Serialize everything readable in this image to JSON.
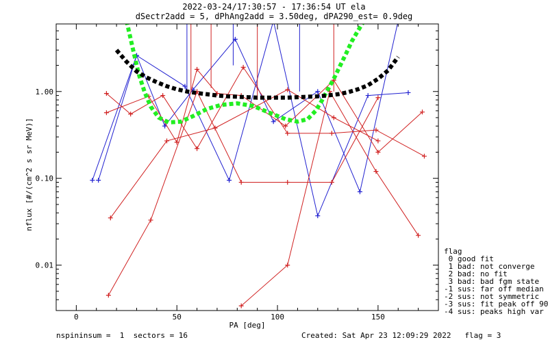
{
  "chart_data": {
    "type": "line",
    "title": "2022-03-24/17:30:57 - 17:36:54 UT ela",
    "subtitle": "dSectr2add = 5, dPhAng2add = 3.50deg, dPA290_est=    0.9deg",
    "xlabel": "PA [deg]",
    "ylabel": "nflux [#/(cm^2 s sr MeV)]",
    "xlim": [
      -10,
      180
    ],
    "ylim": [
      0.003,
      6.0
    ],
    "yscale": "log",
    "x_ticks": [
      0,
      50,
      100,
      150
    ],
    "y_ticks": [
      {
        "value": 0.01,
        "label": "0.01"
      },
      {
        "value": 0.1,
        "label": "0.10"
      },
      {
        "value": 1.0,
        "label": "1.00"
      }
    ],
    "series": [
      {
        "color": "#2020d0",
        "style": "line-plus",
        "x": [
          11,
          30,
          54,
          76,
          98,
          120,
          145,
          165
        ],
        "y": [
          0.095,
          2.6,
          1.15,
          0.095,
          6.5,
          0.037,
          0.9,
          0.97
        ]
      },
      {
        "color": "#2020d0",
        "style": "line-plus",
        "x": [
          8,
          30,
          44,
          58,
          79,
          98,
          120,
          141,
          160
        ],
        "y": [
          0.095,
          2.6,
          0.4,
          1.05,
          4.0,
          0.45,
          1.0,
          0.07,
          6.5
        ]
      },
      {
        "color": "#2020d0",
        "style": "segments",
        "x": [
          55,
          55,
          78,
          78,
          111,
          111
        ],
        "y": [
          6.5,
          1.0,
          6.5,
          2.0,
          6.5,
          1.0
        ]
      },
      {
        "color": "#d02020",
        "style": "line-plus",
        "x": [
          15,
          36,
          50,
          60,
          70,
          82,
          104,
          128,
          150,
          172
        ],
        "y": [
          0.57,
          0.88,
          0.26,
          1.8,
          0.95,
          0.9,
          0.4,
          1.35,
          0.2,
          0.58
        ]
      },
      {
        "color": "#d02020",
        "style": "line-plus",
        "x": [
          15,
          27,
          43,
          60,
          83,
          105,
          127,
          149,
          173
        ],
        "y": [
          0.95,
          0.55,
          0.9,
          0.22,
          1.9,
          0.33,
          0.33,
          0.36,
          0.18
        ]
      },
      {
        "color": "#d02020",
        "style": "line-plus",
        "x": [
          16,
          37,
          60,
          82,
          105,
          127,
          150
        ],
        "y": [
          0.0045,
          0.033,
          1.0,
          0.09,
          0.09,
          0.09,
          0.85
        ]
      },
      {
        "color": "#d02020",
        "style": "line-plus",
        "x": [
          82,
          105,
          126,
          149,
          170
        ],
        "y": [
          0.0034,
          0.01,
          1.0,
          0.12,
          0.022
        ]
      },
      {
        "color": "#d02020",
        "style": "line-plus",
        "x": [
          17,
          45,
          69,
          105,
          128,
          150
        ],
        "y": [
          0.035,
          0.27,
          0.38,
          1.05,
          0.5,
          0.27
        ]
      },
      {
        "color": "#d02020",
        "style": "segments",
        "x": [
          57,
          57,
          67,
          67,
          90,
          90,
          128,
          128
        ],
        "y": [
          6.5,
          1.0,
          6.5,
          1.1,
          6.5,
          0.8,
          6.5,
          1.0
        ]
      },
      {
        "color": "#22ee22",
        "style": "thick-dotted",
        "x": [
          25,
          28,
          31,
          34,
          37,
          41,
          46,
          52,
          58,
          65,
          72,
          80,
          88,
          96,
          104,
          110,
          115,
          119,
          122,
          125,
          128,
          131,
          134,
          137,
          140,
          143,
          146
        ],
        "y": [
          6.5,
          3.2,
          1.6,
          0.98,
          0.67,
          0.5,
          0.44,
          0.45,
          0.52,
          0.63,
          0.7,
          0.73,
          0.68,
          0.57,
          0.48,
          0.45,
          0.48,
          0.6,
          0.78,
          1.05,
          1.4,
          1.95,
          2.7,
          3.8,
          5.0,
          6.5,
          7.0
        ]
      },
      {
        "color": "#000000",
        "style": "thick-dotted",
        "x": [
          20,
          25,
          30,
          35,
          40,
          45,
          50,
          55,
          60,
          65,
          70,
          75,
          80,
          85,
          90,
          95,
          100,
          105,
          110,
          115,
          120,
          125,
          130,
          135,
          140,
          145,
          150,
          155,
          160
        ],
        "y": [
          3.0,
          2.2,
          1.7,
          1.45,
          1.28,
          1.15,
          1.06,
          1.0,
          0.96,
          0.93,
          0.9,
          0.88,
          0.87,
          0.86,
          0.85,
          0.85,
          0.85,
          0.85,
          0.86,
          0.87,
          0.88,
          0.9,
          0.93,
          0.98,
          1.06,
          1.18,
          1.4,
          1.75,
          2.5
        ]
      }
    ],
    "legend": {
      "placement": "bottom-right",
      "title": "flag",
      "entries": [
        " 0 good fit",
        " 1 bad: not converge",
        " 2 bad: no fit",
        " 3 bad: bad fgm state",
        "-1 sus: far off median",
        "-2 sus: not symmetric",
        "-3 sus: fit peak off 90",
        "-4 sus: peaks high var"
      ]
    },
    "footer_left": "nspininsum =  1  sectors = 16",
    "footer_right": "Created: Sat Apr 23 12:09:29 2022   flag = 3",
    "grid": false
  }
}
